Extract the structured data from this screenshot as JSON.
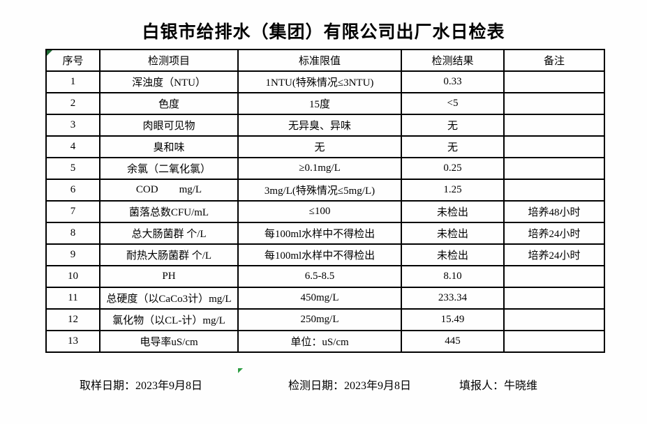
{
  "title": "白银市给排水（集团）有限公司出厂水日检表",
  "table": {
    "headers": [
      "序号",
      "检测项目",
      "标准限值",
      "检测结果",
      "备注"
    ],
    "rows": [
      [
        "1",
        "浑浊度（NTU）",
        "1NTU(特殊情况≤3NTU)",
        "0.33",
        ""
      ],
      [
        "2",
        "色度",
        "15度",
        "<5",
        ""
      ],
      [
        "3",
        "肉眼可见物",
        "无异臭、异味",
        "无",
        ""
      ],
      [
        "4",
        "臭和味",
        "无",
        "无",
        ""
      ],
      [
        "5",
        "余氯（二氧化氯）",
        "≥0.1mg/L",
        "0.25",
        ""
      ],
      [
        "6",
        "COD        mg/L",
        "3mg/L(特殊情况≤5mg/L)",
        "1.25",
        ""
      ],
      [
        "7",
        "菌落总数CFU/mL",
        "≤100",
        "未检出",
        "培养48小时"
      ],
      [
        "8",
        "总大肠菌群 个/L",
        "每100ml水样中不得检出",
        "未检出",
        "培养24小时"
      ],
      [
        "9",
        "耐热大肠菌群 个/L",
        "每100ml水样中不得检出",
        "未检出",
        "培养24小时"
      ],
      [
        "10",
        "PH",
        "6.5-8.5",
        "8.10",
        ""
      ],
      [
        "11",
        "总硬度（以CaCo3计）mg/L",
        "450mg/L",
        "233.34",
        ""
      ],
      [
        "12",
        "氯化物（以CL-计）mg/L",
        "250mg/L",
        "15.49",
        ""
      ],
      [
        "13",
        "电导率uS/cm",
        "单位：uS/cm",
        "445",
        ""
      ]
    ]
  },
  "footer": {
    "sampling_date": "取样日期：2023年9月8日",
    "test_date": "检测日期：2023年9月8日",
    "reporter": "填报人：牛晓维"
  },
  "icons": {
    "top_left_marker": "excel-green-corner-triangle",
    "bottom_marker": "excel-green-corner-triangle"
  },
  "colors": {
    "marker_green": "#2f9e44",
    "border": "#000000",
    "background": "#ffffff",
    "text": "#000000"
  }
}
